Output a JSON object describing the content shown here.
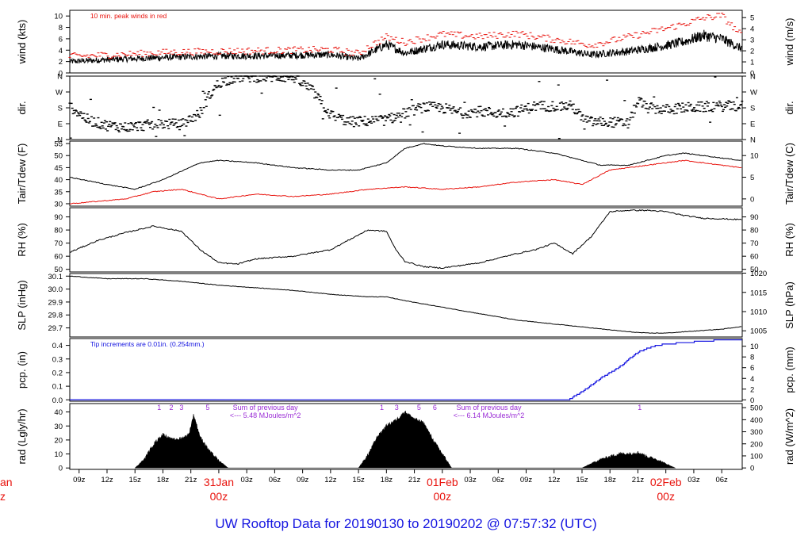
{
  "title": "UW Rooftop Data for 20190130  to  20190202 @ 07:57:32  (UTC)",
  "colors": {
    "red": "#e8120c",
    "blue": "#1515e0",
    "purple": "#9a2bd6",
    "black": "#000000",
    "frame": "#000000"
  },
  "chart_data": {
    "type": "line",
    "time_axis": {
      "unit": "hours since 2019-01-30 08:00 UTC",
      "range": [
        0,
        72.2
      ],
      "ticks": [
        {
          "h": 1,
          "label": "09z"
        },
        {
          "h": 4,
          "label": "12z"
        },
        {
          "h": 7,
          "label": "15z"
        },
        {
          "h": 10,
          "label": "18z"
        },
        {
          "h": 13,
          "label": "21z"
        },
        {
          "h": 16,
          "label": "31Jan"
        },
        {
          "h": 19,
          "label": "03z"
        },
        {
          "h": 22,
          "label": "06z"
        },
        {
          "h": 25,
          "label": "09z"
        },
        {
          "h": 28,
          "label": "12z"
        },
        {
          "h": 31,
          "label": "15z"
        },
        {
          "h": 34,
          "label": "18z"
        },
        {
          "h": 37,
          "label": "21z"
        },
        {
          "h": 40,
          "label": "01Feb"
        },
        {
          "h": 43,
          "label": "03z"
        },
        {
          "h": 46,
          "label": "06z"
        },
        {
          "h": 49,
          "label": "09z"
        },
        {
          "h": 52,
          "label": "12z"
        },
        {
          "h": 55,
          "label": "15z"
        },
        {
          "h": 58,
          "label": "18z"
        },
        {
          "h": 61,
          "label": "21z"
        },
        {
          "h": 64,
          "label": "02Feb"
        },
        {
          "h": 67,
          "label": "03z"
        },
        {
          "h": 70,
          "label": "06z"
        }
      ],
      "day_labels": [
        {
          "h": 16,
          "label": "00z"
        },
        {
          "h": 40,
          "label": "00z"
        },
        {
          "h": 64,
          "label": "00z"
        }
      ],
      "cut_labels": [
        "an",
        "z"
      ]
    },
    "panels": [
      {
        "id": "wind",
        "ylabel": "wind (kts)",
        "ylabel_right": "wind (m/s)",
        "ylim": [
          0,
          11
        ],
        "ticks": [
          0,
          2,
          4,
          6,
          8,
          10
        ],
        "right_ylim": [
          0,
          5.66
        ],
        "right_ticks": [
          0,
          1,
          2,
          3,
          4,
          5
        ],
        "annotation": "10 min. peak winds in red",
        "series": [
          {
            "name": "wind speed",
            "color": "#000000",
            "x": [
              0,
              5,
              10,
              16,
              20,
              24,
              28,
              31,
              32,
              34,
              36,
              40,
              44,
              48,
              52,
              56,
              60,
              64,
              66,
              68,
              70,
              72
            ],
            "y": [
              2.0,
              2.4,
              2.7,
              3.0,
              3.0,
              3.1,
              3.2,
              2.5,
              3.3,
              5.0,
              3.5,
              5.0,
              4.6,
              5.0,
              4.2,
              3.2,
              3.8,
              4.8,
              5.5,
              6.6,
              6.0,
              4.4
            ]
          },
          {
            "name": "10 min peak",
            "color": "#e8120c",
            "x": [
              0,
              5,
              10,
              16,
              20,
              24,
              28,
              31,
              32,
              34,
              36,
              40,
              44,
              48,
              52,
              56,
              60,
              64,
              66,
              68,
              70,
              72
            ],
            "y": [
              2.9,
              3.2,
              3.6,
              3.8,
              3.9,
              4.0,
              4.1,
              3.4,
              4.5,
              6.3,
              5.4,
              6.8,
              6.4,
              6.9,
              5.9,
              4.9,
              6.3,
              7.8,
              8.6,
              9.6,
              10.1,
              6.8
            ]
          }
        ]
      },
      {
        "id": "dir",
        "ylabel": "dir.",
        "ylabel_right": "dir.",
        "ylim": [
          0,
          360
        ],
        "ticks": [
          0,
          90,
          180,
          270,
          360
        ],
        "tick_labels": [
          "N",
          "E",
          "S",
          "W",
          "N"
        ],
        "series": [
          {
            "name": "direction",
            "color": "#000000",
            "x": [
              0,
              2,
              4,
              6,
              8,
              10,
              12,
              14,
              15,
              16,
              17,
              18,
              20,
              22,
              24,
              26,
              28,
              30,
              32,
              34,
              36,
              38,
              40,
              42,
              44,
              46,
              48,
              50,
              52,
              54,
              55,
              56,
              58,
              60,
              61,
              62,
              64,
              66,
              68,
              70,
              72
            ],
            "y": [
              190,
              110,
              80,
              70,
              80,
              90,
              85,
              150,
              250,
              320,
              340,
              355,
              355,
              355,
              355,
              280,
              140,
              100,
              105,
              110,
              150,
              185,
              180,
              150,
              160,
              150,
              160,
              190,
              190,
              190,
              120,
              100,
              100,
              90,
              220,
              180,
              170,
              180,
              185,
              190,
              190
            ]
          }
        ]
      },
      {
        "id": "temp",
        "ylabel": "Tair/Tdew (F)",
        "ylabel_right": "Tair/Tdew (C)",
        "ylim": [
          29,
          56
        ],
        "ticks": [
          30,
          35,
          40,
          45,
          50,
          55
        ],
        "right_ylim": [
          -1.67,
          13.33
        ],
        "right_ticks": [
          0,
          5,
          10
        ],
        "series": [
          {
            "name": "Tair",
            "color": "#000000",
            "x": [
              0,
              4,
              7,
              10,
              14,
              16,
              20,
              24,
              28,
              31,
              34,
              36,
              38,
              40,
              44,
              48,
              52,
              55,
              57,
              60,
              62,
              64,
              66,
              68,
              72
            ],
            "y": [
              41,
              38,
              36,
              40,
              47,
              48,
              47,
              45,
              44,
              44,
              47,
              53,
              55,
              54,
              53,
              53,
              51,
              48,
              46,
              46,
              48,
              50,
              51,
              50,
              48
            ]
          },
          {
            "name": "Tdew",
            "color": "#e8120c",
            "x": [
              0,
              3,
              6,
              9,
              12,
              16,
              20,
              24,
              28,
              32,
              36,
              40,
              44,
              48,
              52,
              55,
              58,
              60,
              62,
              64,
              66,
              68,
              70,
              72
            ],
            "y": [
              30,
              31,
              32,
              35,
              36,
              32,
              34,
              33,
              34,
              36,
              37,
              36,
              37,
              39,
              40,
              38,
              44,
              45,
              46,
              47,
              48,
              47,
              46,
              45
            ]
          }
        ]
      },
      {
        "id": "rh",
        "ylabel": "RH (%)",
        "ylabel_right": "RH (%)",
        "ylim": [
          48,
          97
        ],
        "ticks": [
          50,
          60,
          70,
          80,
          90
        ],
        "right_ylim": [
          48,
          97
        ],
        "right_ticks": [
          50,
          60,
          70,
          80,
          90
        ],
        "series": [
          {
            "name": "RH",
            "color": "#000000",
            "x": [
              0,
              3,
              6,
              9,
              12,
              14,
              16,
              18,
              20,
              22,
              24,
              28,
              32,
              34,
              35,
              36,
              38,
              40,
              44,
              48,
              50,
              52,
              54,
              56,
              58,
              60,
              62,
              64,
              66,
              68,
              72
            ],
            "y": [
              63,
              72,
              78,
              83,
              79,
              65,
              55,
              54,
              58,
              59,
              60,
              65,
              80,
              79,
              65,
              56,
              52,
              51,
              55,
              62,
              65,
              70,
              62,
              75,
              94,
              95,
              95,
              94,
              91,
              89,
              88
            ]
          }
        ]
      },
      {
        "id": "slp",
        "ylabel": "SLP (inHg)",
        "ylabel_right": "SLP (hPa)",
        "ylim": [
          29.63,
          30.12
        ],
        "ticks": [
          29.7,
          29.8,
          29.9,
          30.0,
          30.1
        ],
        "right_ylim": [
          1003.4,
          1019.9
        ],
        "right_ticks": [
          1005,
          1010,
          1015,
          1020
        ],
        "series": [
          {
            "name": "SLP",
            "color": "#000000",
            "x": [
              0,
              4,
              8,
              12,
              16,
              20,
              24,
              28,
              32,
              34,
              36,
              40,
              44,
              48,
              52,
              56,
              60,
              62,
              64,
              66,
              68,
              70,
              72
            ],
            "y": [
              30.1,
              30.08,
              30.08,
              30.06,
              30.03,
              30.01,
              29.99,
              29.96,
              29.94,
              29.94,
              29.91,
              29.86,
              29.81,
              29.76,
              29.73,
              29.7,
              29.67,
              29.66,
              29.66,
              29.67,
              29.68,
              29.69,
              29.71
            ]
          }
        ]
      },
      {
        "id": "pcp",
        "ylabel": "pcp. (in)",
        "ylabel_right": "pcp. (mm)",
        "ylim": [
          -0.01,
          0.45
        ],
        "ticks": [
          0.0,
          0.1,
          0.2,
          0.3,
          0.4
        ],
        "right_ylim": [
          -0.25,
          11.43
        ],
        "right_ticks": [
          0,
          2,
          4,
          6,
          8,
          10
        ],
        "annotation": "Tip increments are 0.01in. (0.254mm.)",
        "series": [
          {
            "name": "precip",
            "color": "#1515e0",
            "x": [
              0,
              53.5,
              55,
              57,
              59,
              60,
              61,
              62,
              63,
              64,
              66,
              68,
              70,
              72
            ],
            "y": [
              0,
              0,
              0.06,
              0.16,
              0.24,
              0.3,
              0.35,
              0.38,
              0.4,
              0.41,
              0.42,
              0.43,
              0.44,
              0.44
            ]
          }
        ]
      },
      {
        "id": "rad",
        "ylabel": "rad (Lgly/hr)",
        "ylabel_right": "rad (W/m^2)",
        "ylim": [
          -1,
          46
        ],
        "ticks": [
          0,
          10,
          20,
          30,
          40
        ],
        "right_ylim": [
          -12,
          534
        ],
        "right_ticks": [
          0,
          100,
          200,
          300,
          400,
          500
        ],
        "day_sums": [
          {
            "x_h": 21,
            "line1": "Sum of previous day",
            "line2": "<--- 5.48 MJoules/m^2"
          },
          {
            "x_h": 45,
            "line1": "Sum of previous day",
            "line2": "<--- 6.14 MJoules/m^2"
          }
        ],
        "markers": [
          {
            "h": 9.6,
            "label": "1"
          },
          {
            "h": 10.9,
            "label": "2"
          },
          {
            "h": 12.0,
            "label": "3"
          },
          {
            "h": 14.8,
            "label": "5"
          },
          {
            "h": 33.5,
            "label": "1"
          },
          {
            "h": 35.1,
            "label": "3"
          },
          {
            "h": 37.5,
            "label": "5"
          },
          {
            "h": 39.2,
            "label": "6"
          },
          {
            "h": 61.2,
            "label": "1"
          }
        ],
        "series": [
          {
            "name": "radiation",
            "color": "#000000",
            "type": "area",
            "x": [
              7,
              8,
              9,
              10,
              11,
              12,
              12.8,
              13.3,
              14,
              15,
              16,
              17,
              31,
              32,
              33,
              34,
              35,
              36,
              37,
              38,
              39,
              40,
              41,
              55,
              56,
              57,
              58,
              59,
              60,
              61,
              62,
              63,
              64,
              65
            ],
            "y": [
              0,
              6,
              17,
              24,
              20,
              21,
              24,
              38,
              22,
              12,
              5,
              0,
              0,
              9,
              22,
              30,
              34,
              40,
              35,
              32,
              20,
              10,
              0,
              0,
              3,
              6,
              8,
              10,
              10,
              11,
              8,
              6,
              3,
              0
            ]
          }
        ]
      }
    ]
  }
}
